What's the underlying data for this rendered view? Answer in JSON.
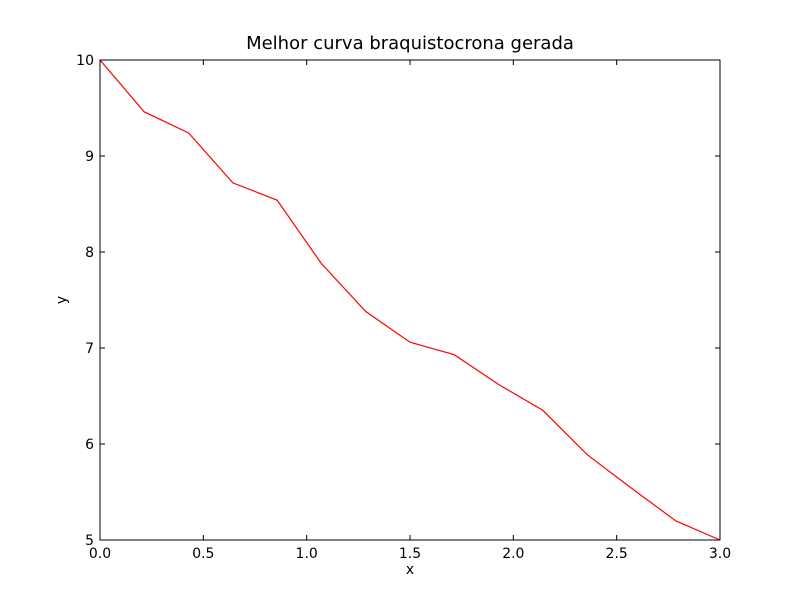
{
  "chart_data": {
    "type": "line",
    "title": "Melhor curva braquistocrona gerada",
    "xlabel": "x",
    "ylabel": "y",
    "xlim": [
      0.0,
      3.0
    ],
    "ylim": [
      5,
      10
    ],
    "xticks": [
      0.0,
      0.5,
      1.0,
      1.5,
      2.0,
      2.5,
      3.0
    ],
    "xtick_labels": [
      "0.0",
      "0.5",
      "1.0",
      "1.5",
      "2.0",
      "2.5",
      "3.0"
    ],
    "yticks": [
      5,
      6,
      7,
      8,
      9,
      10
    ],
    "ytick_labels": [
      "5",
      "6",
      "7",
      "8",
      "9",
      "10"
    ],
    "grid": false,
    "series": [
      {
        "color": "#ff0000",
        "x": [
          0.0,
          0.214,
          0.429,
          0.643,
          0.857,
          1.071,
          1.286,
          1.5,
          1.714,
          1.929,
          2.143,
          2.357,
          2.571,
          2.786,
          3.0
        ],
        "y": [
          10.0,
          9.46,
          9.24,
          8.72,
          8.54,
          7.88,
          7.38,
          7.06,
          6.93,
          6.62,
          6.35,
          5.89,
          5.54,
          5.2,
          5.0
        ]
      }
    ]
  }
}
